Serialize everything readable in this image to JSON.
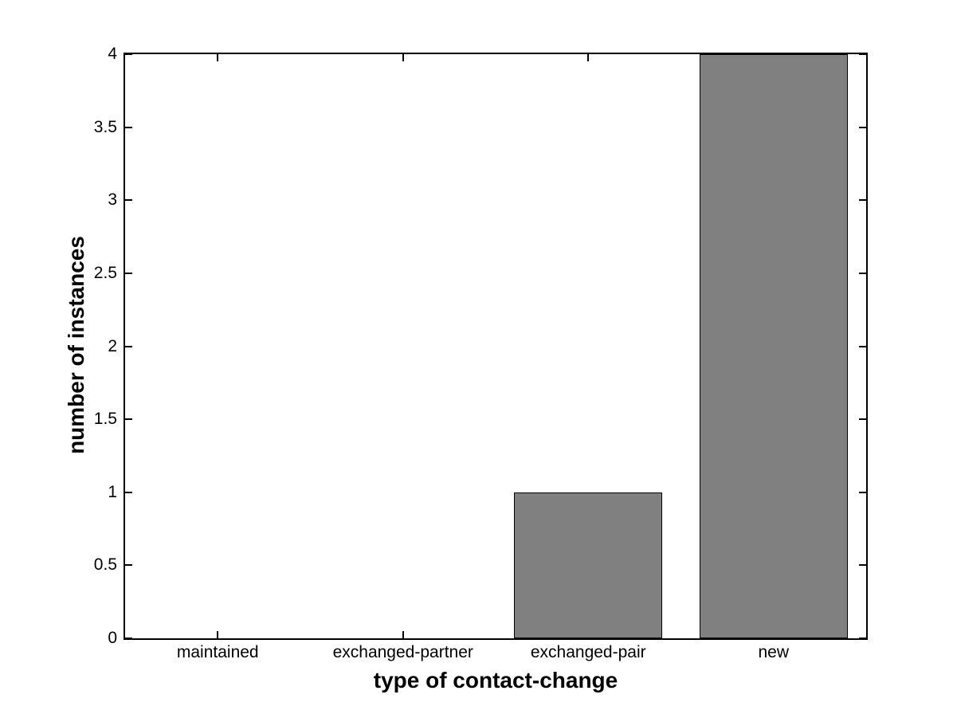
{
  "figure": {
    "background": "#ffffff",
    "axis_color": "#000000",
    "tick_direction": "in",
    "box": true
  },
  "chart_data": {
    "type": "bar",
    "title": "",
    "categories": [
      "maintained",
      "exchanged-partner",
      "exchanged-pair",
      "new"
    ],
    "values": [
      0,
      0,
      1,
      4
    ],
    "xlabel": "type of contact-change",
    "ylabel": "number of instances",
    "ylim": [
      0,
      4
    ],
    "yticks": [
      0,
      0.5,
      1,
      1.5,
      2,
      2.5,
      3,
      3.5,
      4
    ],
    "ytick_labels": [
      "0",
      "0.5",
      "1",
      "1.5",
      "2",
      "2.5",
      "3",
      "3.5",
      "4"
    ],
    "bar_width_fraction": 0.8,
    "bar_color": "#808080",
    "bar_edge_color": "#000000",
    "grid": false,
    "legend": null
  }
}
